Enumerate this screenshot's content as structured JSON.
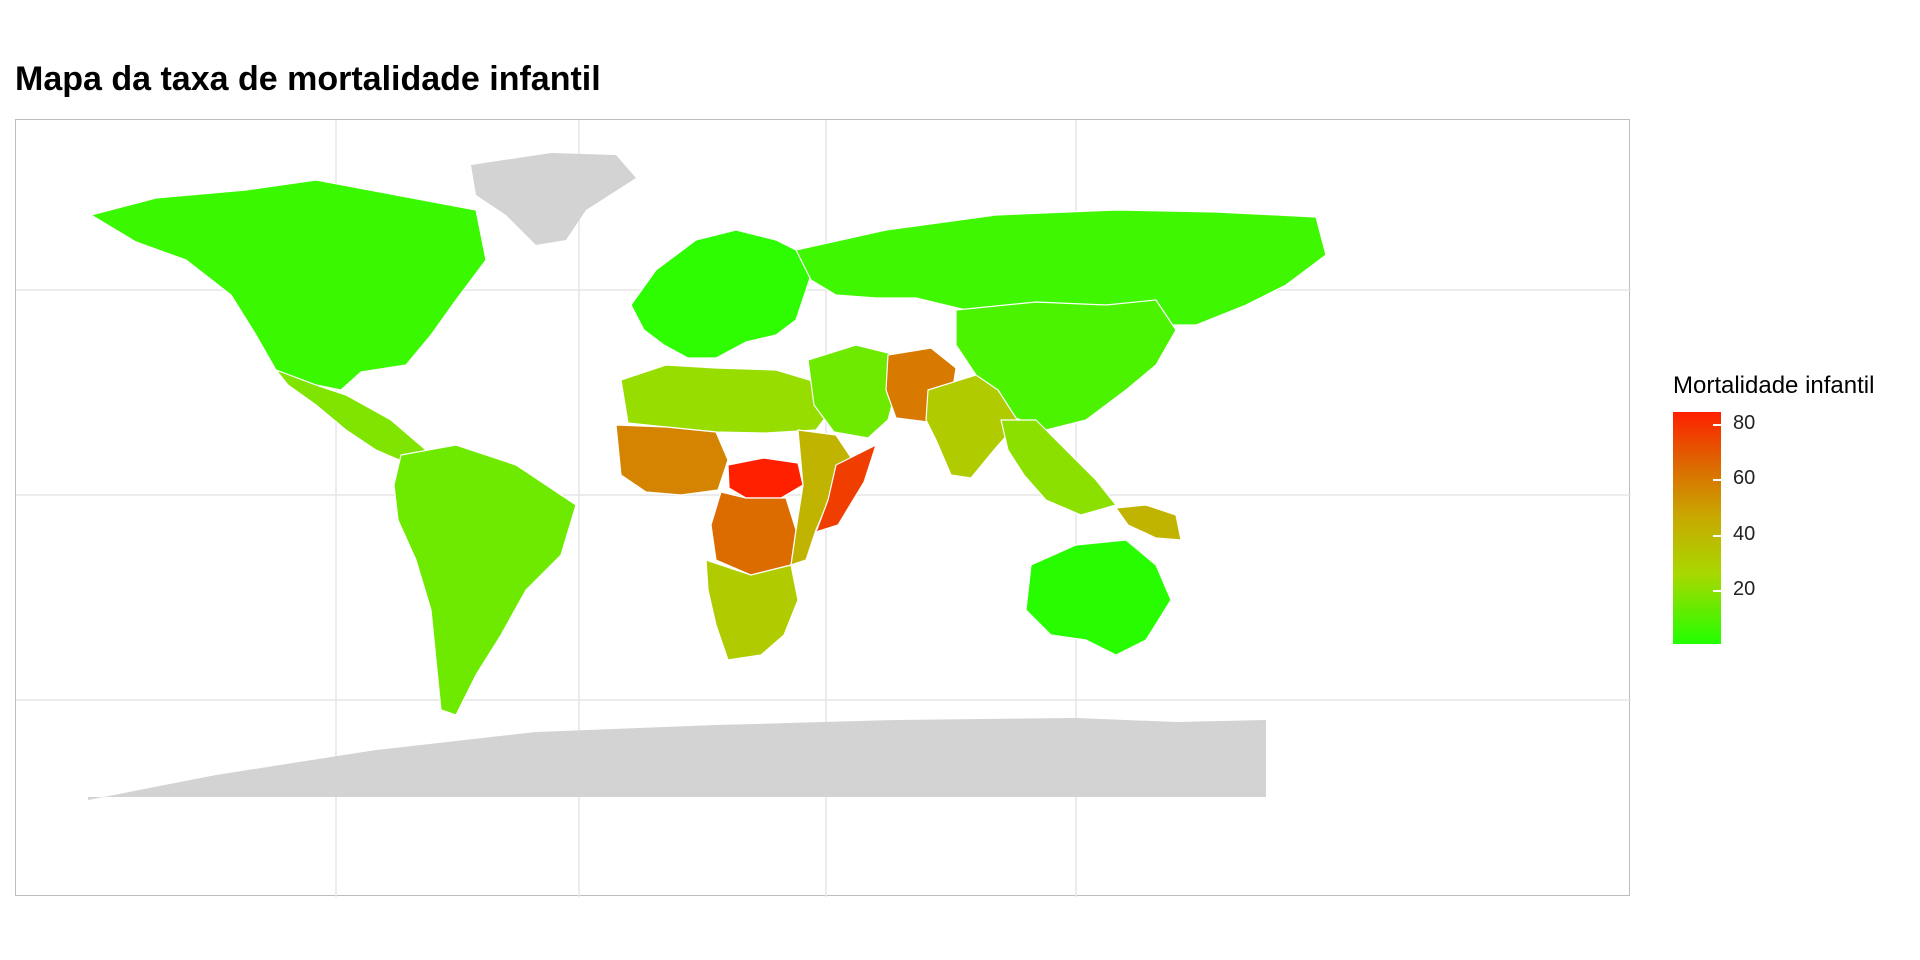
{
  "title": "Mapa da taxa de mortalidade infantil",
  "legend": {
    "title": "Mortalidade infantil",
    "ticks": [
      "80",
      "60",
      "40",
      "20"
    ],
    "low_color": "#22ff00",
    "high_color": "#ff2000",
    "missing_color": "#d3d3d3"
  },
  "map": {
    "type": "choropleth",
    "projection": "equirectangular",
    "variable": "infant mortality",
    "grid": true,
    "legend_position": "right",
    "regions": [
      {
        "name": "North America",
        "value": 6
      },
      {
        "name": "Central America",
        "value": 18
      },
      {
        "name": "South America",
        "value": 15
      },
      {
        "name": "Europe",
        "value": 4
      },
      {
        "name": "Russia",
        "value": 7
      },
      {
        "name": "North Africa",
        "value": 22
      },
      {
        "name": "West Africa",
        "value": 55
      },
      {
        "name": "Central African Republic",
        "value": 86
      },
      {
        "name": "Central Africa",
        "value": 62
      },
      {
        "name": "East Africa",
        "value": 40
      },
      {
        "name": "Somalia",
        "value": 76
      },
      {
        "name": "Southern Africa",
        "value": 30
      },
      {
        "name": "Middle East",
        "value": 15
      },
      {
        "name": "Pakistan/Afghanistan",
        "value": 58
      },
      {
        "name": "India",
        "value": 30
      },
      {
        "name": "China",
        "value": 9
      },
      {
        "name": "Southeast Asia",
        "value": 20
      },
      {
        "name": "Papua New Guinea",
        "value": 40
      },
      {
        "name": "Australia/NZ",
        "value": 3
      },
      {
        "name": "Greenland",
        "value": null
      },
      {
        "name": "Antarctica",
        "value": null
      }
    ]
  }
}
